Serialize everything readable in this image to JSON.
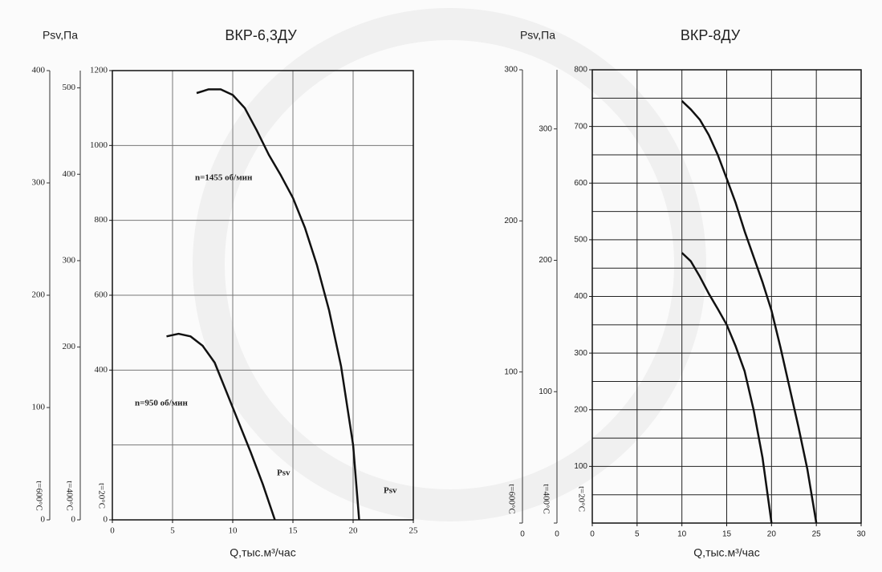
{
  "chart_data": [
    {
      "type": "line",
      "title": "ВКР-6,3ДУ",
      "ylabel": "Psv,Па",
      "xlabel": "Q,тыс.м³/час",
      "xlim": [
        0,
        25
      ],
      "xticks": [
        0,
        5,
        10,
        15,
        20,
        25
      ],
      "ylim": [
        0,
        1200
      ],
      "yticks": [
        0,
        400,
        600,
        800,
        1000,
        1200
      ],
      "grid": true,
      "grid_x": [
        5,
        10,
        15,
        20
      ],
      "grid_y": [
        200,
        400,
        600,
        800,
        1000
      ],
      "axis_label": "t=20°C",
      "aux_axes": [
        {
          "label": "t=600°C",
          "ylim": [
            0,
            400
          ],
          "yticks": [
            0,
            100,
            200,
            300,
            400
          ]
        },
        {
          "label": "t=400°C",
          "ylim": [
            0,
            520
          ],
          "yticks": [
            0,
            200,
            300,
            400,
            500
          ]
        }
      ],
      "series": [
        {
          "name": "n=1455 об/мин",
          "color": "#111111",
          "x": [
            7,
            8,
            9,
            10,
            11,
            12,
            13,
            14,
            15,
            16,
            17,
            18,
            19,
            20,
            20.5
          ],
          "values": [
            1140,
            1150,
            1150,
            1135,
            1100,
            1040,
            975,
            920,
            860,
            780,
            680,
            560,
            410,
            200,
            0
          ]
        },
        {
          "name": "n=950 об/мин",
          "color": "#111111",
          "x": [
            4.5,
            5.5,
            6.5,
            7.5,
            8.5,
            9.5,
            10.5,
            11.5,
            12.5,
            13.5
          ],
          "values": [
            490,
            497,
            490,
            465,
            420,
            340,
            260,
            180,
            95,
            0
          ]
        }
      ],
      "annotations": [
        "Psv",
        "Psv"
      ]
    },
    {
      "type": "line",
      "title": "ВКР-8ДУ",
      "ylabel": "Psv,Па",
      "xlabel": "Q,тыс.м³/час",
      "xlim": [
        0,
        30
      ],
      "xticks": [
        0,
        5,
        10,
        15,
        20,
        25,
        30
      ],
      "ylim": [
        0,
        800
      ],
      "yticks": [
        100,
        200,
        300,
        400,
        500,
        600,
        700,
        800
      ],
      "grid": true,
      "grid_x": [
        5,
        10,
        15,
        20,
        25
      ],
      "grid_y": [
        50,
        100,
        150,
        200,
        250,
        300,
        350,
        400,
        450,
        500,
        550,
        600,
        650,
        700,
        750
      ],
      "axis_label": "t=20°C",
      "aux_axes": [
        {
          "label": "t=600°C",
          "ylim": [
            0,
            300
          ],
          "yticks": [
            0,
            100,
            200,
            300
          ]
        },
        {
          "label": "t=400°C",
          "ylim": [
            0,
            345
          ],
          "yticks": [
            0,
            100,
            200,
            300
          ]
        }
      ],
      "series": [
        {
          "color": "#111111",
          "x": [
            10,
            11,
            12,
            13,
            14,
            15,
            16,
            17,
            18,
            19,
            20,
            21,
            22,
            23,
            24,
            25
          ],
          "values": [
            745,
            730,
            712,
            685,
            650,
            608,
            565,
            515,
            470,
            425,
            375,
            310,
            240,
            170,
            95,
            0
          ]
        },
        {
          "color": "#111111",
          "x": [
            10,
            11,
            12,
            13,
            14,
            15,
            16,
            17,
            18,
            19,
            20
          ],
          "values": [
            477,
            462,
            435,
            405,
            378,
            350,
            312,
            268,
            200,
            115,
            0
          ]
        }
      ]
    }
  ]
}
